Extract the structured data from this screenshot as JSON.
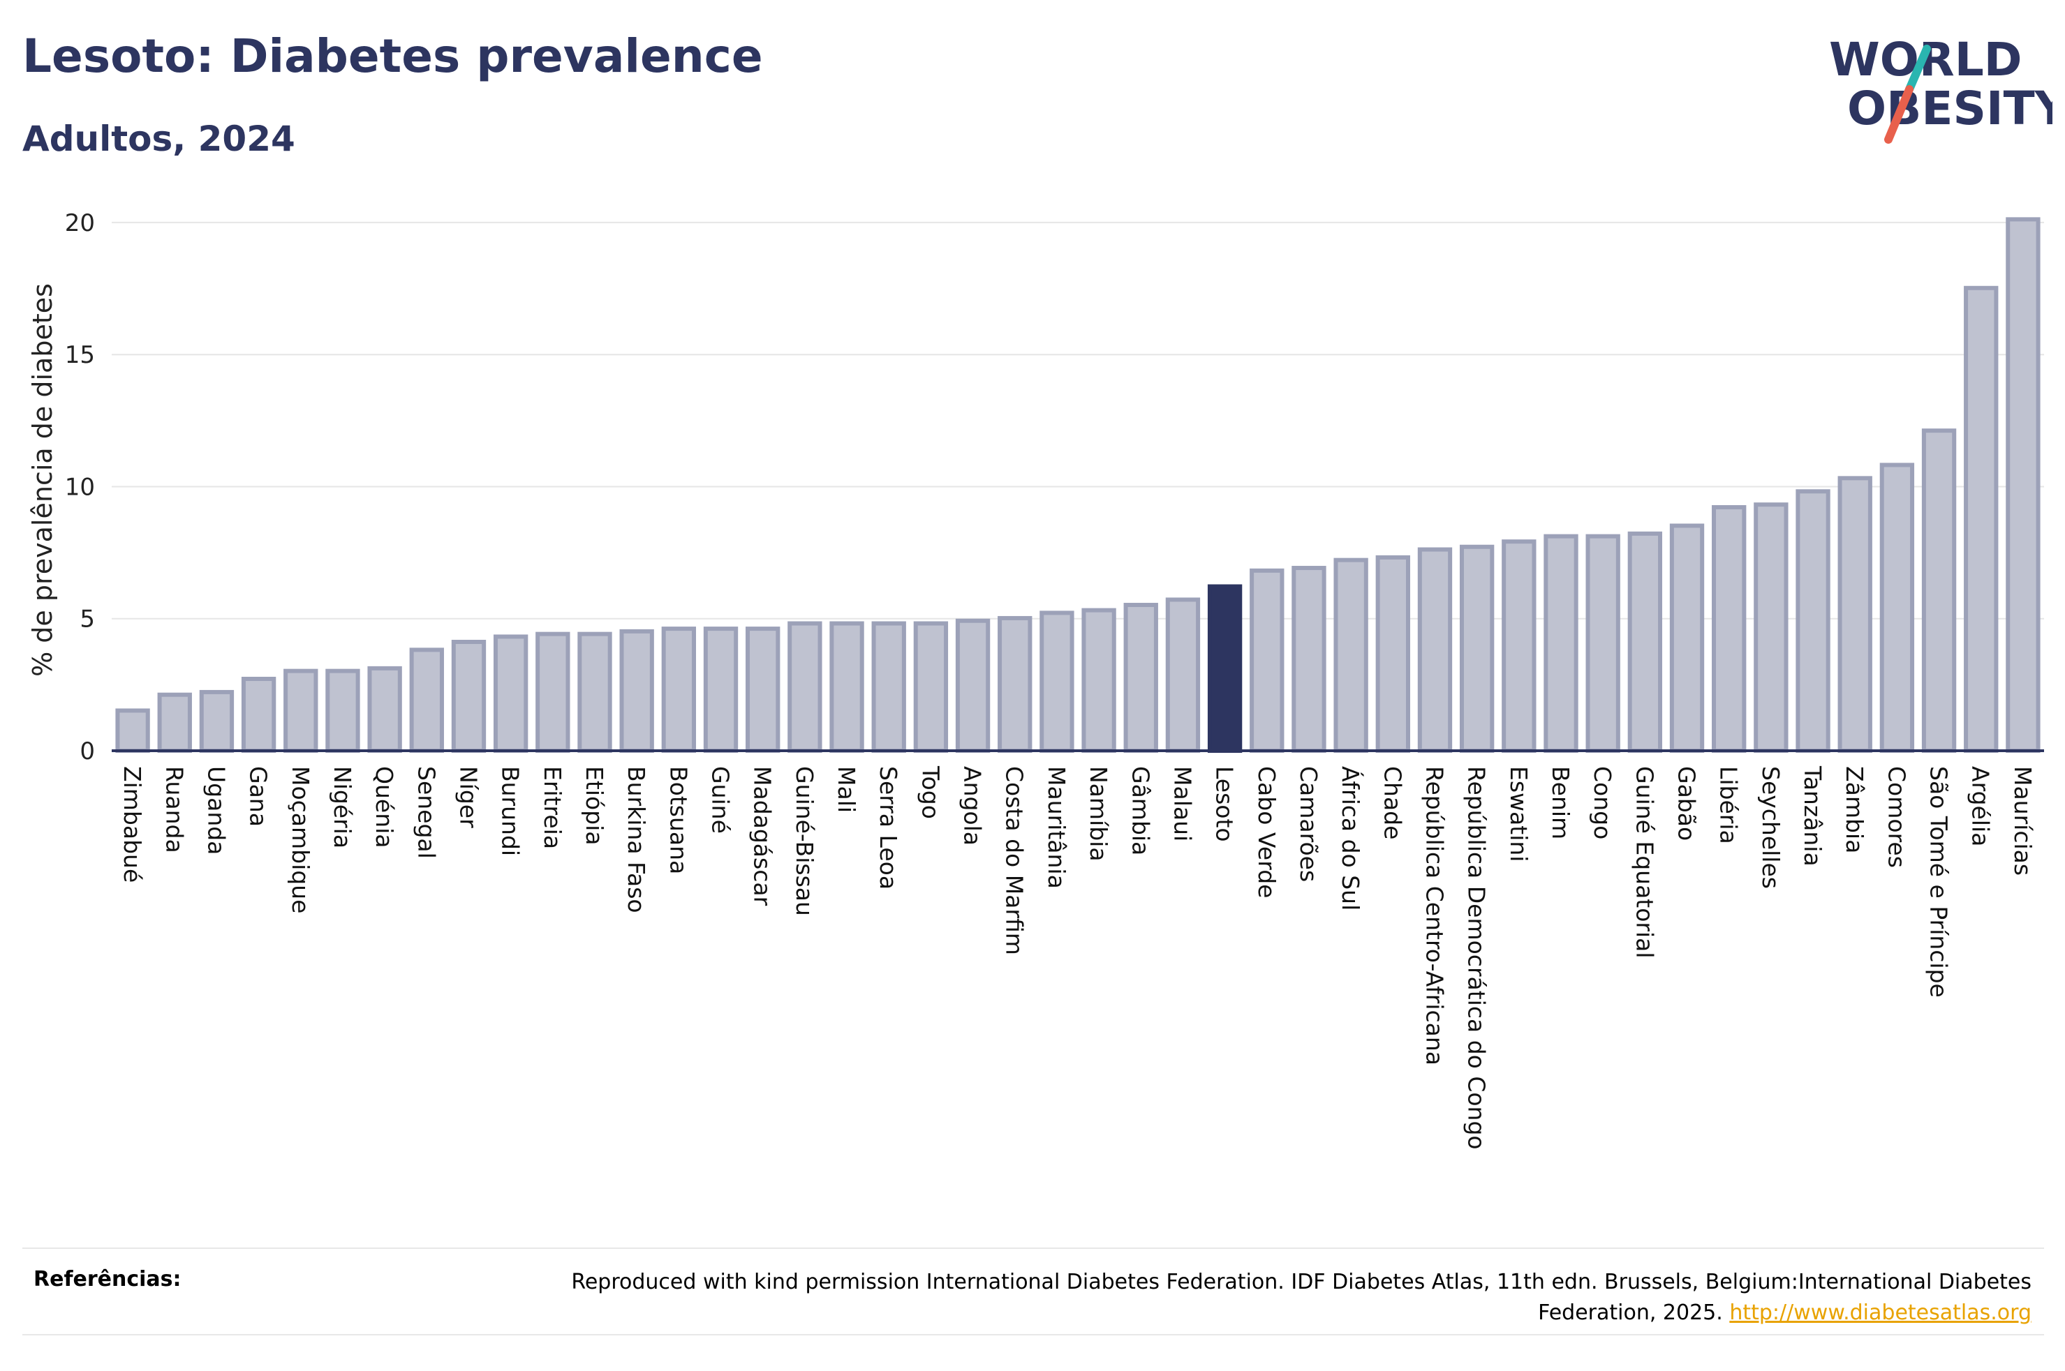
{
  "header": {
    "title": "Lesoto: Diabetes prevalence",
    "subtitle": "Adultos, 2024"
  },
  "logo": {
    "line1": "WORLD",
    "line2": "OBESITY",
    "colors": {
      "text": "#2d3560",
      "slash_top": "#2ab5b0",
      "slash_bottom": "#e8604c"
    }
  },
  "colors": {
    "bar_fill": "#bfc2d0",
    "bar_stroke": "#9ca1b8",
    "highlight": "#2d3560",
    "grid": "#e6e6e6",
    "axis": "#2d3560"
  },
  "chart_data": {
    "type": "bar",
    "ylabel": "% de prevalência de diabetes",
    "xlabel": "",
    "ylim": [
      0,
      20.5
    ],
    "yticks": [
      0,
      5,
      10,
      15,
      20
    ],
    "grid": true,
    "highlight": "Lesoto",
    "categories": [
      "Zimbabué",
      "Ruanda",
      "Uganda",
      "Gana",
      "Moçambique",
      "Nigéria",
      "Quénia",
      "Senegal",
      "Níger",
      "Burundi",
      "Eritreia",
      "Etiópia",
      "Burkina Faso",
      "Botsuana",
      "Guiné",
      "Madagáscar",
      "Guiné-Bissau",
      "Mali",
      "Serra Leoa",
      "Togo",
      "Angola",
      "Costa do Marfim",
      "Mauritânia",
      "Namíbia",
      "Gâmbia",
      "Malaui",
      "Lesoto",
      "Cabo Verde",
      "Camarões",
      "África do Sul",
      "Chade",
      "República Centro-Africana",
      "República Democrática do Congo",
      "Eswatini",
      "Benim",
      "Congo",
      "Guiné Equatorial",
      "Gabão",
      "Libéria",
      "Seychelles",
      "Tanzânia",
      "Zâmbia",
      "Comores",
      "São Tomé e Príncipe",
      "Argélia",
      "Maurícias"
    ],
    "values": [
      1.6,
      2.2,
      2.3,
      2.8,
      3.1,
      3.1,
      3.2,
      3.9,
      4.2,
      4.4,
      4.5,
      4.5,
      4.6,
      4.7,
      4.7,
      4.7,
      4.9,
      4.9,
      4.9,
      4.9,
      5.0,
      5.1,
      5.3,
      5.4,
      5.6,
      5.8,
      6.3,
      6.9,
      7.0,
      7.3,
      7.4,
      7.7,
      7.8,
      8.0,
      8.2,
      8.2,
      8.3,
      8.6,
      9.3,
      9.4,
      9.9,
      10.4,
      10.9,
      12.2,
      17.6,
      20.2
    ]
  },
  "references": {
    "label": "Referências:",
    "text": "Reproduced with kind permission International Diabetes Federation. IDF Diabetes Atlas, 11th edn. Brussels, Belgium:International Diabetes Federation, 2025.",
    "link": "http://www.diabetesatlas.org"
  }
}
